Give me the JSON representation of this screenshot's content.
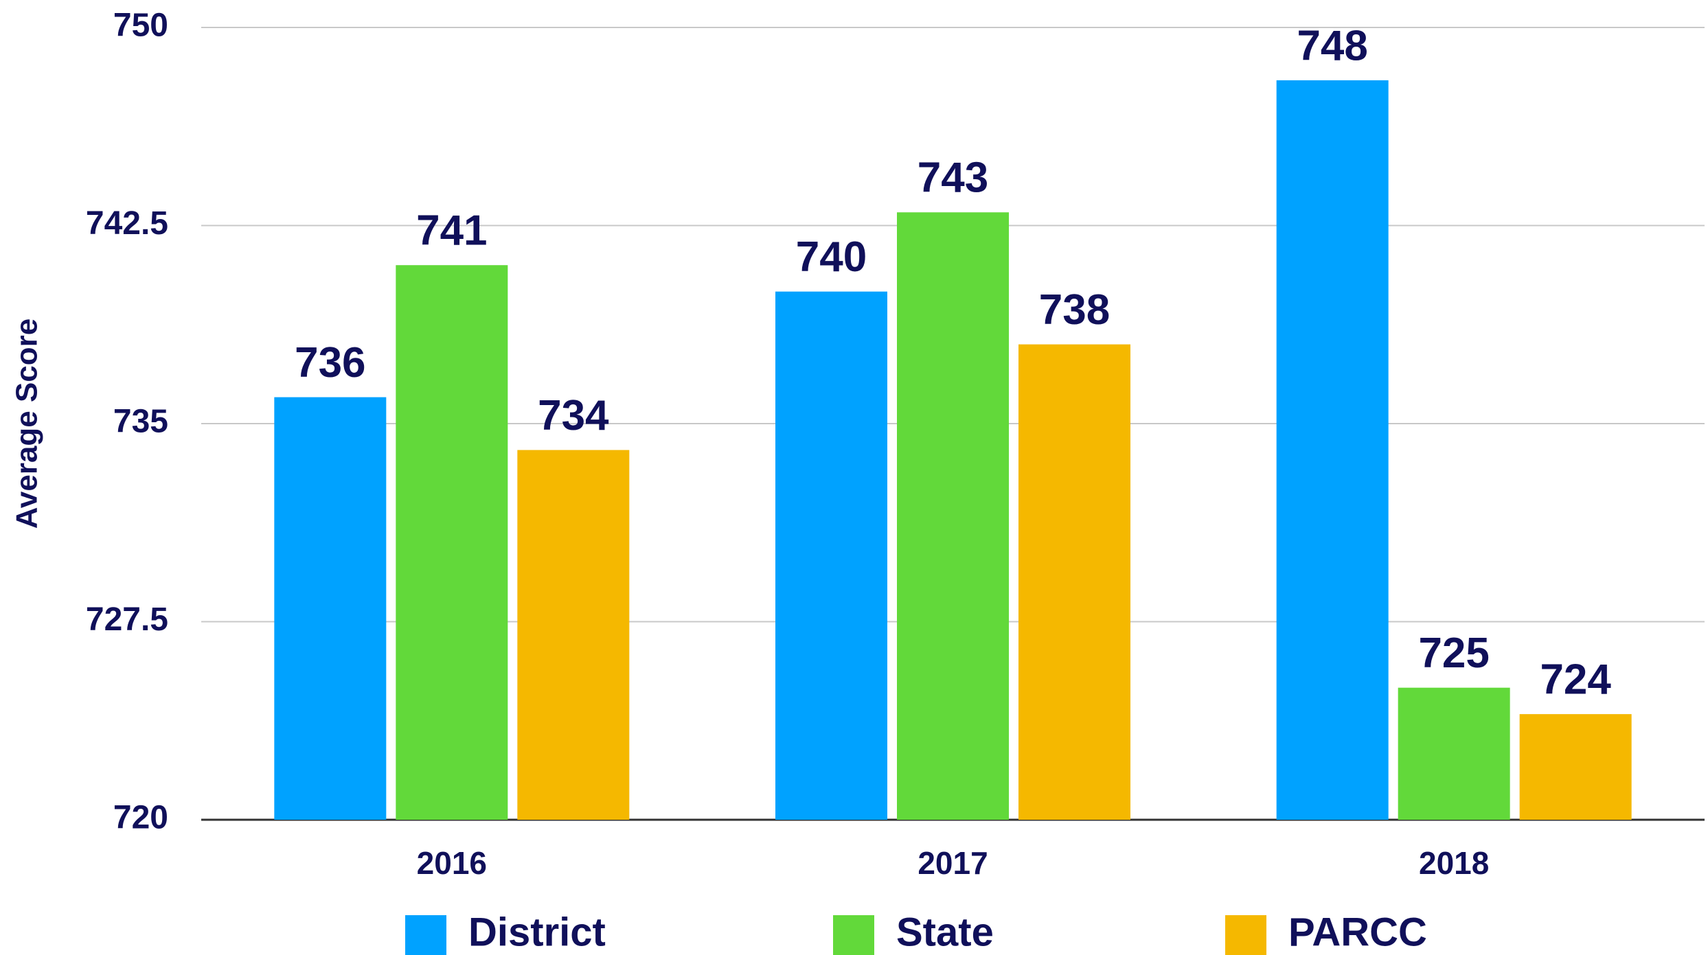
{
  "chart_data": {
    "type": "bar",
    "y_label": "Average Score",
    "categories": [
      "2016",
      "2017",
      "2018"
    ],
    "series": [
      {
        "name": "District",
        "color": "#00a2ff",
        "values": [
          736,
          740,
          748
        ]
      },
      {
        "name": "State",
        "color": "#62d93a",
        "values": [
          741,
          743,
          725
        ]
      },
      {
        "name": "PARCC",
        "color": "#f5b800",
        "values": [
          734,
          738,
          724
        ]
      }
    ],
    "ylim": [
      720,
      750
    ],
    "yticks": [
      720,
      727.5,
      735,
      742.5,
      750
    ],
    "grid": true,
    "legend": "bottom"
  }
}
